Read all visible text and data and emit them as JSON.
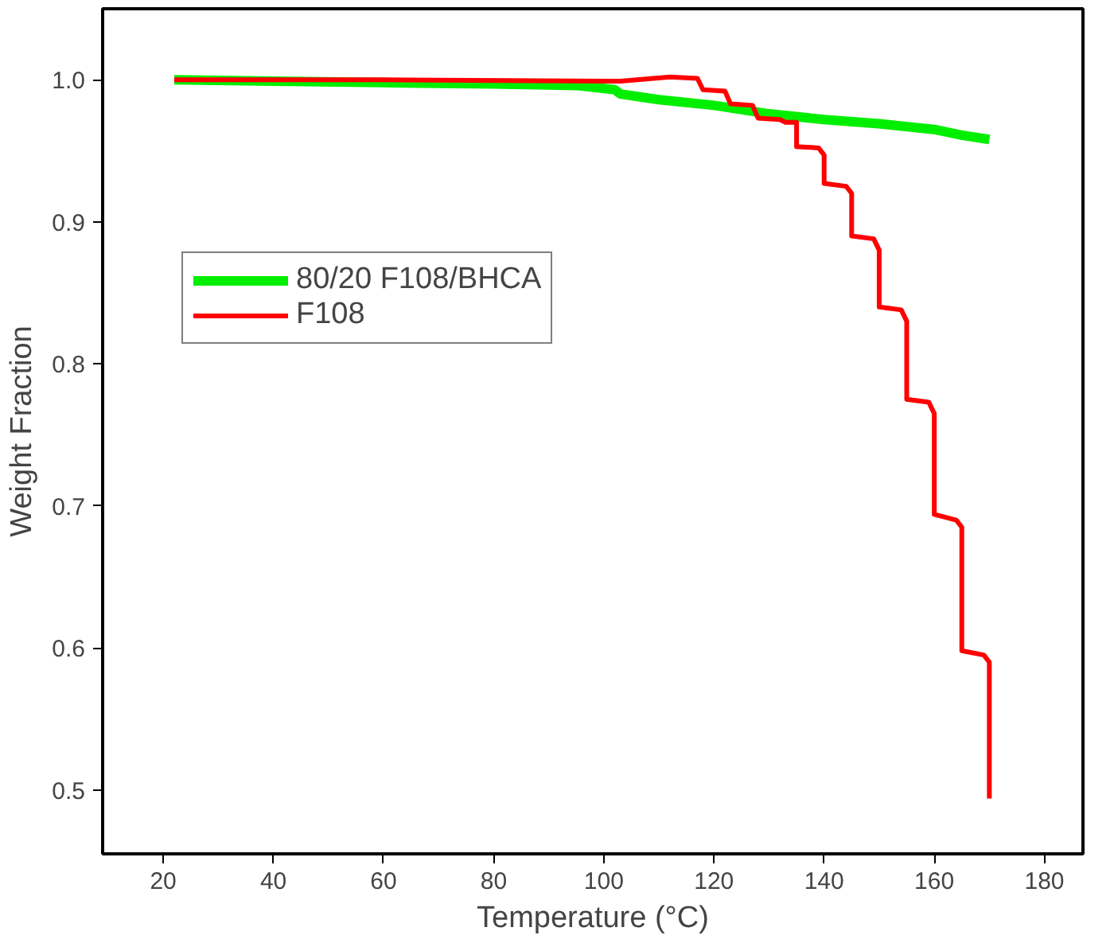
{
  "chart_data": {
    "type": "line",
    "xlabel": "Temperature (°C)",
    "ylabel": "Weight Fraction",
    "xlim": [
      9,
      187
    ],
    "ylim": [
      0.455,
      1.05
    ],
    "xticks": [
      20,
      40,
      60,
      80,
      100,
      120,
      140,
      160,
      180
    ],
    "yticks": [
      0.5,
      0.6,
      0.7,
      0.8,
      0.9,
      {
        "value": 1.0,
        "label": "1.0"
      }
    ],
    "grid": false,
    "legend": "top left",
    "line_style": "solid",
    "marker": "none",
    "series": [
      {
        "name": "80/20 F108/BHCA",
        "color": "#00ee00",
        "x": [
          22,
          40,
          60,
          80,
          95,
          102,
          103,
          110,
          120,
          130,
          140,
          150,
          160,
          165,
          170
        ],
        "values": [
          1.0,
          0.999,
          0.998,
          0.997,
          0.996,
          0.993,
          0.99,
          0.986,
          0.982,
          0.976,
          0.972,
          0.969,
          0.965,
          0.961,
          0.958
        ]
      },
      {
        "name": "F108",
        "color": "#ff0000",
        "x": [
          22,
          60,
          103,
          112,
          117,
          118,
          122,
          123,
          127,
          128,
          132,
          133,
          135,
          135,
          139,
          140,
          140,
          144,
          145,
          145,
          149,
          150,
          150,
          154,
          155,
          155,
          159,
          160,
          160,
          164,
          165,
          165,
          169,
          170,
          170
        ],
        "values": [
          1.0,
          1.0,
          0.999,
          1.002,
          1.001,
          0.993,
          0.992,
          0.983,
          0.982,
          0.973,
          0.972,
          0.97,
          0.97,
          0.953,
          0.952,
          0.947,
          0.927,
          0.925,
          0.92,
          0.89,
          0.888,
          0.88,
          0.84,
          0.838,
          0.83,
          0.775,
          0.773,
          0.765,
          0.694,
          0.69,
          0.685,
          0.598,
          0.595,
          0.59,
          0.494
        ]
      }
    ]
  }
}
